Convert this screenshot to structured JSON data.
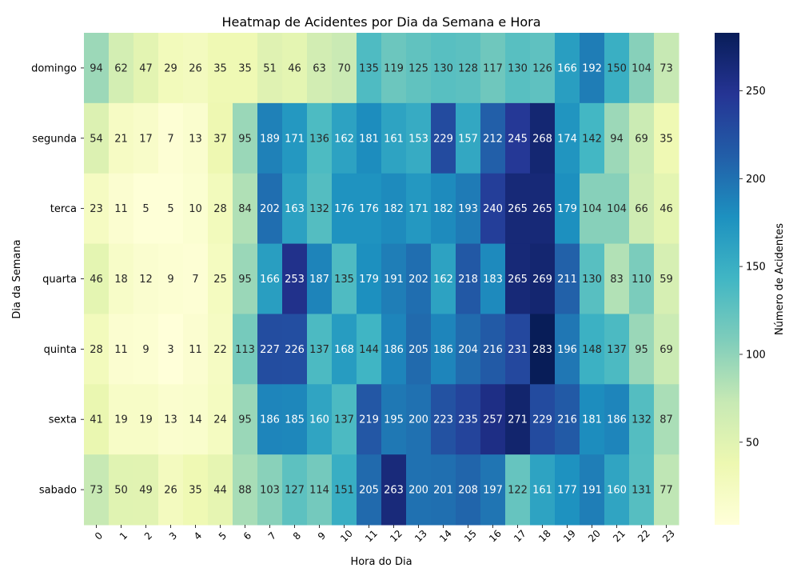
{
  "chart_data": {
    "type": "heatmap",
    "title": "Heatmap de Acidentes por Dia da Semana e Hora",
    "xlabel": "Hora do Dia",
    "ylabel": "Dia da Semana",
    "colorbar_label": "Número de Acidentes",
    "colormap": "YlGnBu",
    "colorbar_range": [
      3,
      283
    ],
    "colorbar_ticks": [
      50,
      100,
      150,
      200,
      250
    ],
    "x": [
      "0",
      "1",
      "2",
      "3",
      "4",
      "5",
      "6",
      "7",
      "8",
      "9",
      "10",
      "11",
      "12",
      "13",
      "14",
      "15",
      "16",
      "17",
      "18",
      "19",
      "20",
      "21",
      "22",
      "23"
    ],
    "y": [
      "domingo",
      "segunda",
      "terca",
      "quarta",
      "quinta",
      "sexta",
      "sabado"
    ],
    "values": [
      [
        94,
        62,
        47,
        29,
        26,
        35,
        35,
        51,
        46,
        63,
        70,
        135,
        119,
        125,
        130,
        128,
        117,
        130,
        126,
        166,
        192,
        150,
        104,
        73
      ],
      [
        54,
        21,
        17,
        7,
        13,
        37,
        95,
        189,
        171,
        136,
        162,
        181,
        161,
        153,
        229,
        157,
        212,
        245,
        268,
        174,
        142,
        94,
        69,
        35
      ],
      [
        23,
        11,
        5,
        5,
        10,
        28,
        84,
        202,
        163,
        132,
        176,
        176,
        182,
        171,
        182,
        193,
        240,
        265,
        265,
        179,
        104,
        104,
        66,
        46
      ],
      [
        46,
        18,
        12,
        9,
        7,
        25,
        95,
        166,
        253,
        187,
        135,
        179,
        191,
        202,
        162,
        218,
        183,
        265,
        269,
        211,
        130,
        83,
        110,
        59
      ],
      [
        28,
        11,
        9,
        3,
        11,
        22,
        113,
        227,
        226,
        137,
        168,
        144,
        186,
        205,
        186,
        204,
        216,
        231,
        283,
        196,
        148,
        137,
        95,
        69
      ],
      [
        41,
        19,
        19,
        13,
        14,
        24,
        95,
        186,
        185,
        160,
        137,
        219,
        195,
        200,
        223,
        235,
        257,
        271,
        229,
        216,
        181,
        186,
        132,
        87
      ],
      [
        73,
        50,
        49,
        26,
        35,
        44,
        88,
        103,
        127,
        114,
        151,
        205,
        263,
        200,
        201,
        208,
        197,
        122,
        161,
        177,
        191,
        160,
        131,
        77
      ]
    ]
  }
}
